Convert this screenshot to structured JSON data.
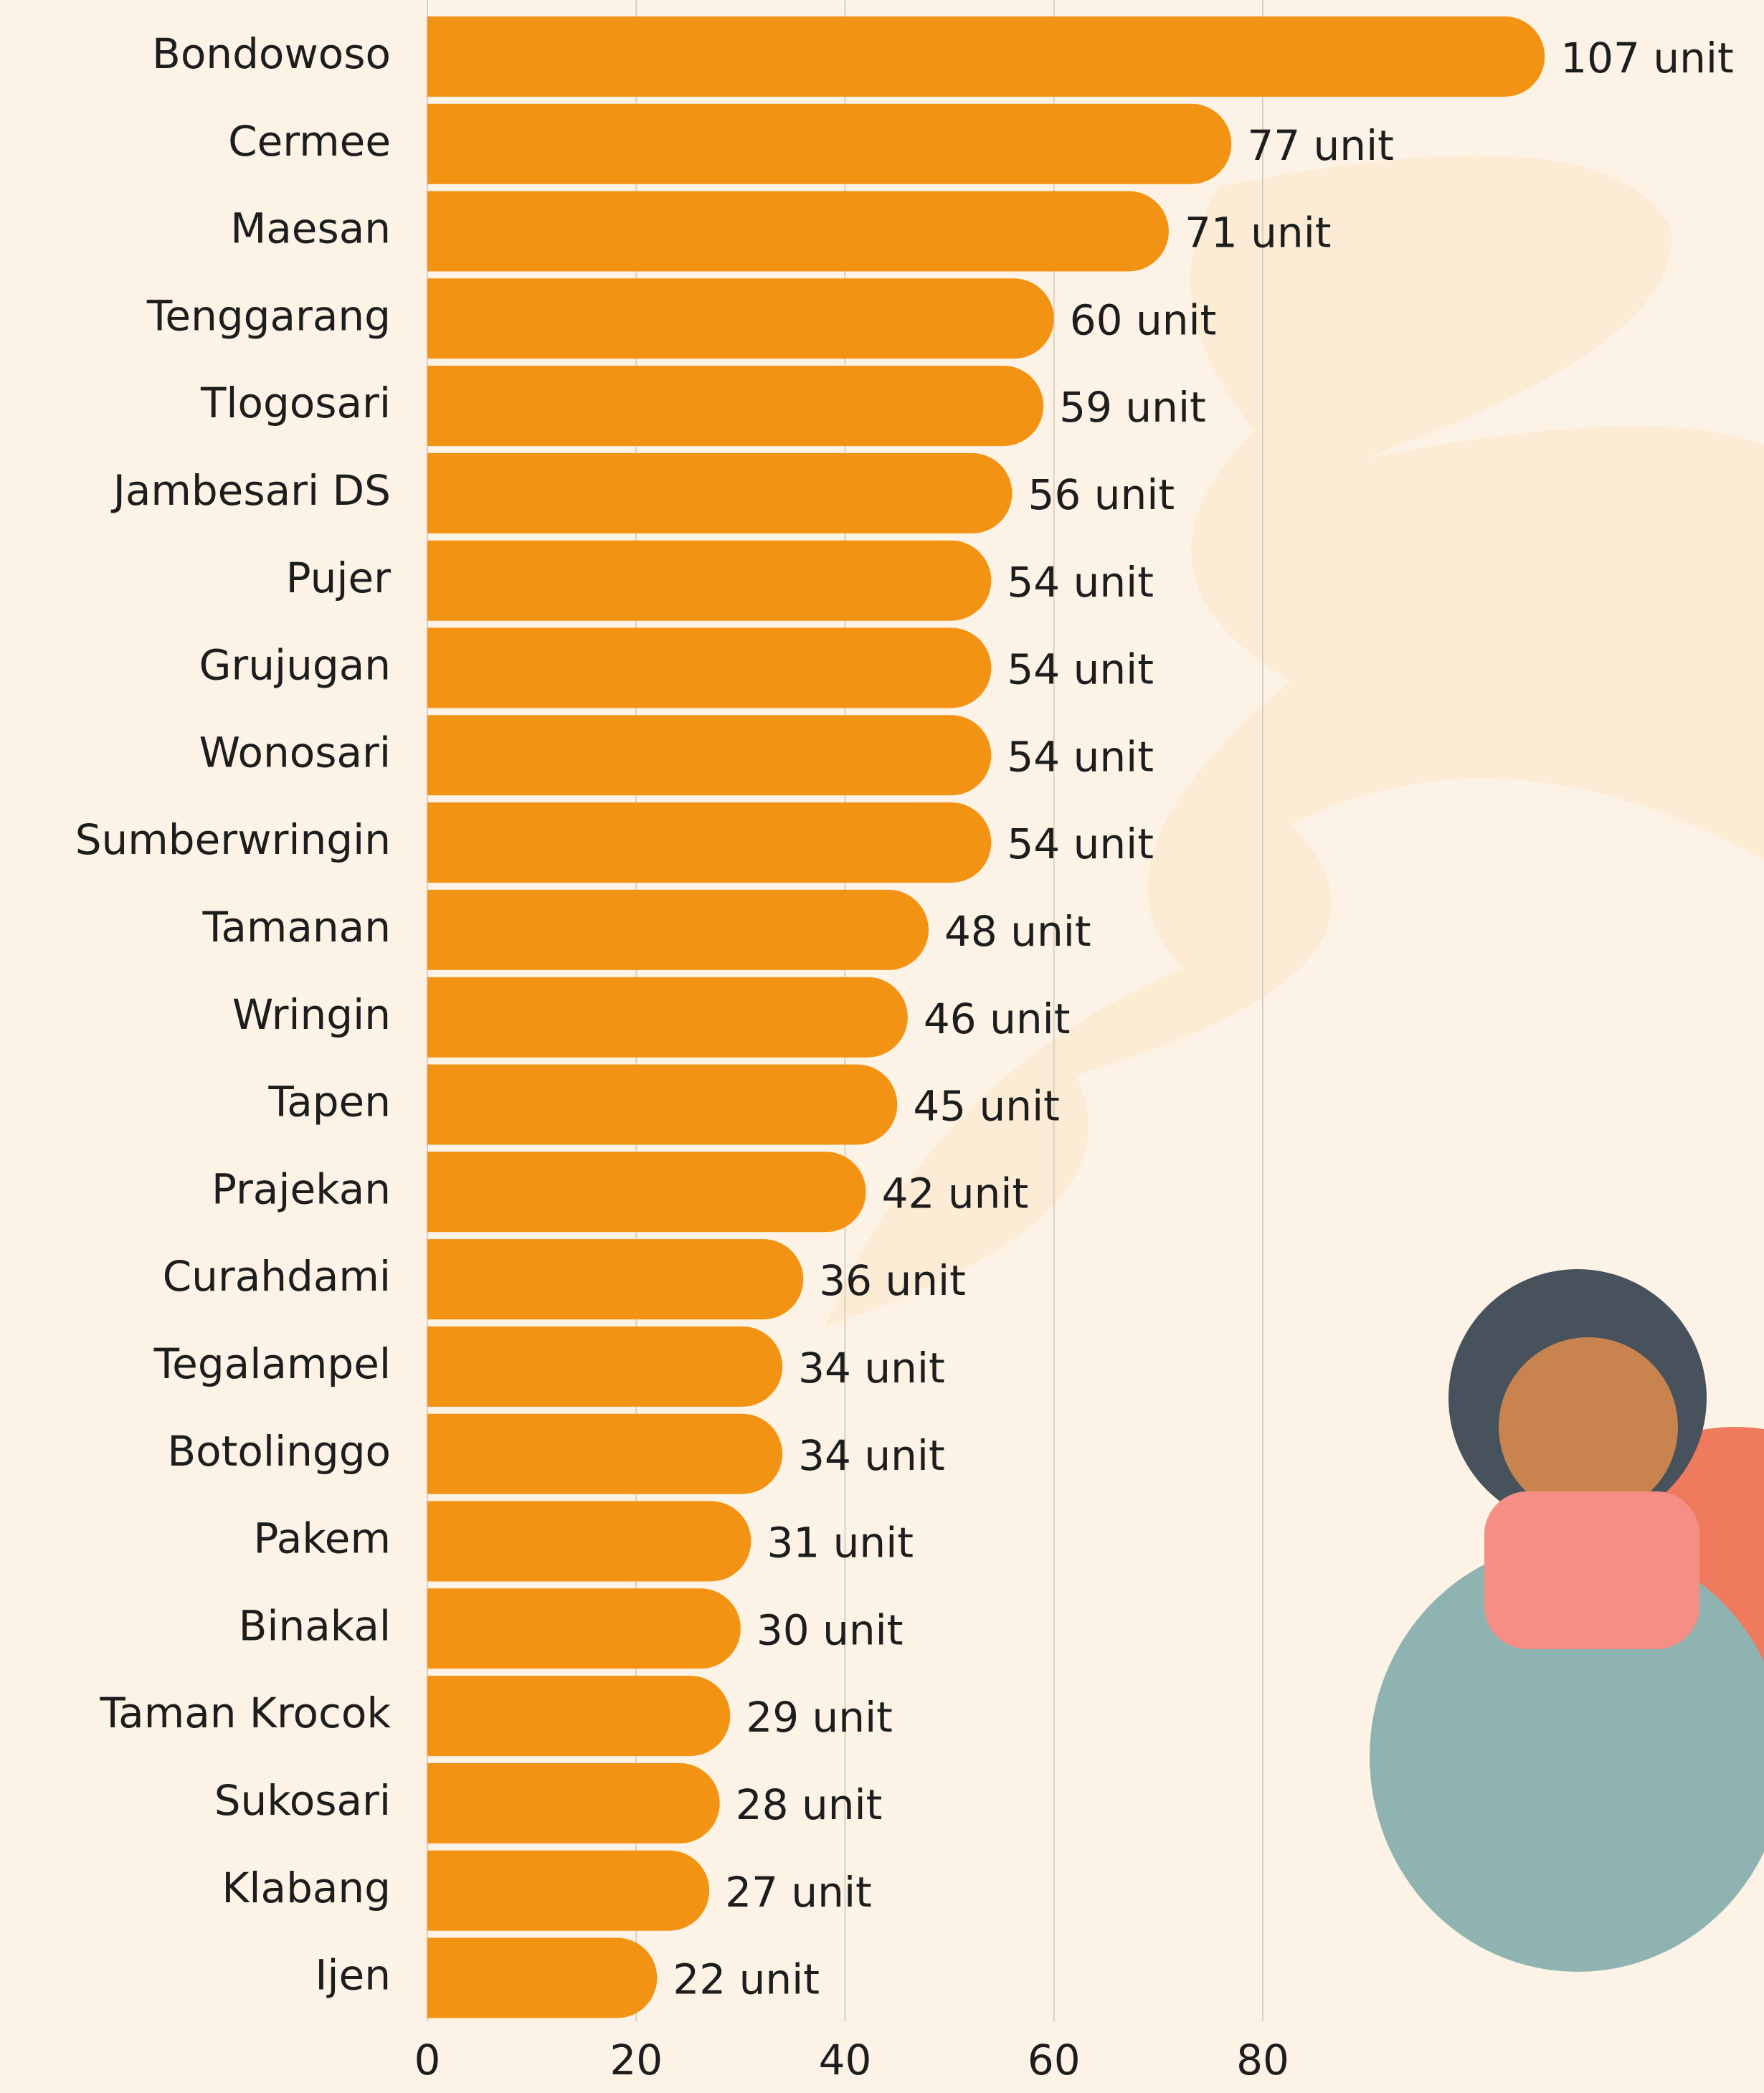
{
  "chart_data": {
    "type": "bar",
    "orientation": "horizontal",
    "categories": [
      "Bondowoso",
      "Cermee",
      "Maesan",
      "Tenggarang",
      "Tlogosari",
      "Jambesari DS",
      "Pujer",
      "Grujugan",
      "Wonosari",
      "Sumberwringin",
      "Tamanan",
      "Wringin",
      "Tapen",
      "Prajekan",
      "Curahdami",
      "Tegalampel",
      "Botolinggo",
      "Pakem",
      "Binakal",
      "Taman Krocok",
      "Sukosari",
      "Klabang",
      "Ijen"
    ],
    "values": [
      107,
      77,
      71,
      60,
      59,
      56,
      54,
      54,
      54,
      54,
      48,
      46,
      45,
      42,
      36,
      34,
      34,
      31,
      30,
      29,
      28,
      27,
      22
    ],
    "value_labels": [
      "107 unit",
      "77 unit",
      "71 unit",
      "60 unit",
      "59 unit",
      "56 unit",
      "54 unit",
      "54 unit",
      "54 unit",
      "54 unit",
      "48 unit",
      "46 unit",
      "45 unit",
      "42 unit",
      "36 unit",
      "34 unit",
      "34 unit",
      "31 unit",
      "30 unit",
      "29 unit",
      "28 unit",
      "27 unit",
      "22 unit"
    ],
    "color": "#f39314",
    "xlim": [
      0,
      128
    ],
    "xticks": [
      0,
      20,
      40,
      60,
      80
    ],
    "grid": true
  }
}
